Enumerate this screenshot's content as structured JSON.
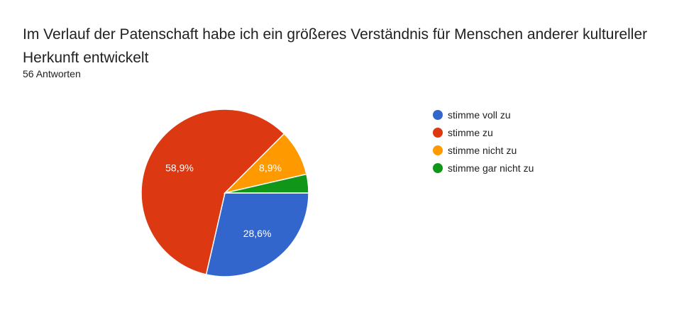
{
  "chart_data": {
    "type": "pie",
    "title": "Im Verlauf der Patenschaft habe ich ein größeres Verständnis für Menschen anderer kultureller Herkunft entwickelt",
    "subtitle": "56 Antworten",
    "slices": [
      {
        "label": "stimme voll zu",
        "value": 28.6,
        "display": "28,6%",
        "color": "#3366cc"
      },
      {
        "label": "stimme zu",
        "value": 58.9,
        "display": "58,9%",
        "color": "#dc3912"
      },
      {
        "label": "stimme nicht zu",
        "value": 8.9,
        "display": "8,9%",
        "color": "#ff9900"
      },
      {
        "label": "stimme gar nicht zu",
        "value": 3.6,
        "display": "",
        "color": "#109618"
      }
    ],
    "legend_position": "right"
  }
}
